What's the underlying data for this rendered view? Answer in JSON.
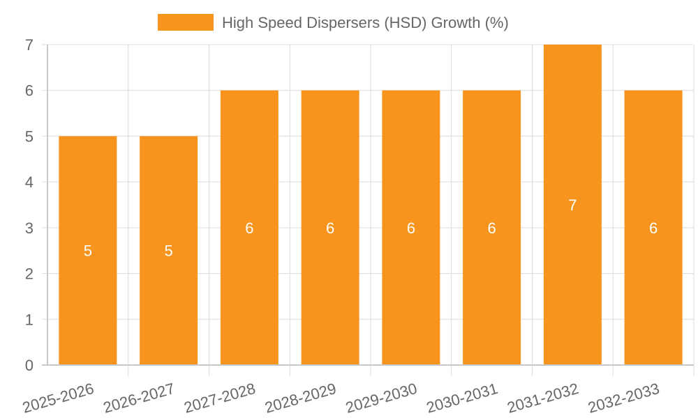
{
  "chart_data": {
    "type": "bar",
    "title": "",
    "xlabel": "",
    "ylabel": "",
    "categories": [
      "2025-2026",
      "2026-2027",
      "2027-2028",
      "2028-2029",
      "2029-2030",
      "2030-2031",
      "2031-2032",
      "2032-2033"
    ],
    "series": [
      {
        "name": "High Speed Dispersers (HSD) Growth (%)",
        "values": [
          5,
          5,
          6,
          6,
          6,
          6,
          7,
          6
        ]
      }
    ],
    "ylim": [
      0,
      7
    ],
    "yticks": [
      "0",
      "1",
      "2",
      "3",
      "4",
      "5",
      "6",
      "7"
    ],
    "grid": true,
    "legend_position": "top-center",
    "colors": {
      "bar": "#F7941D",
      "grid": "#dcdcdc",
      "text": "#666666",
      "data_label": "#ffffff"
    }
  }
}
